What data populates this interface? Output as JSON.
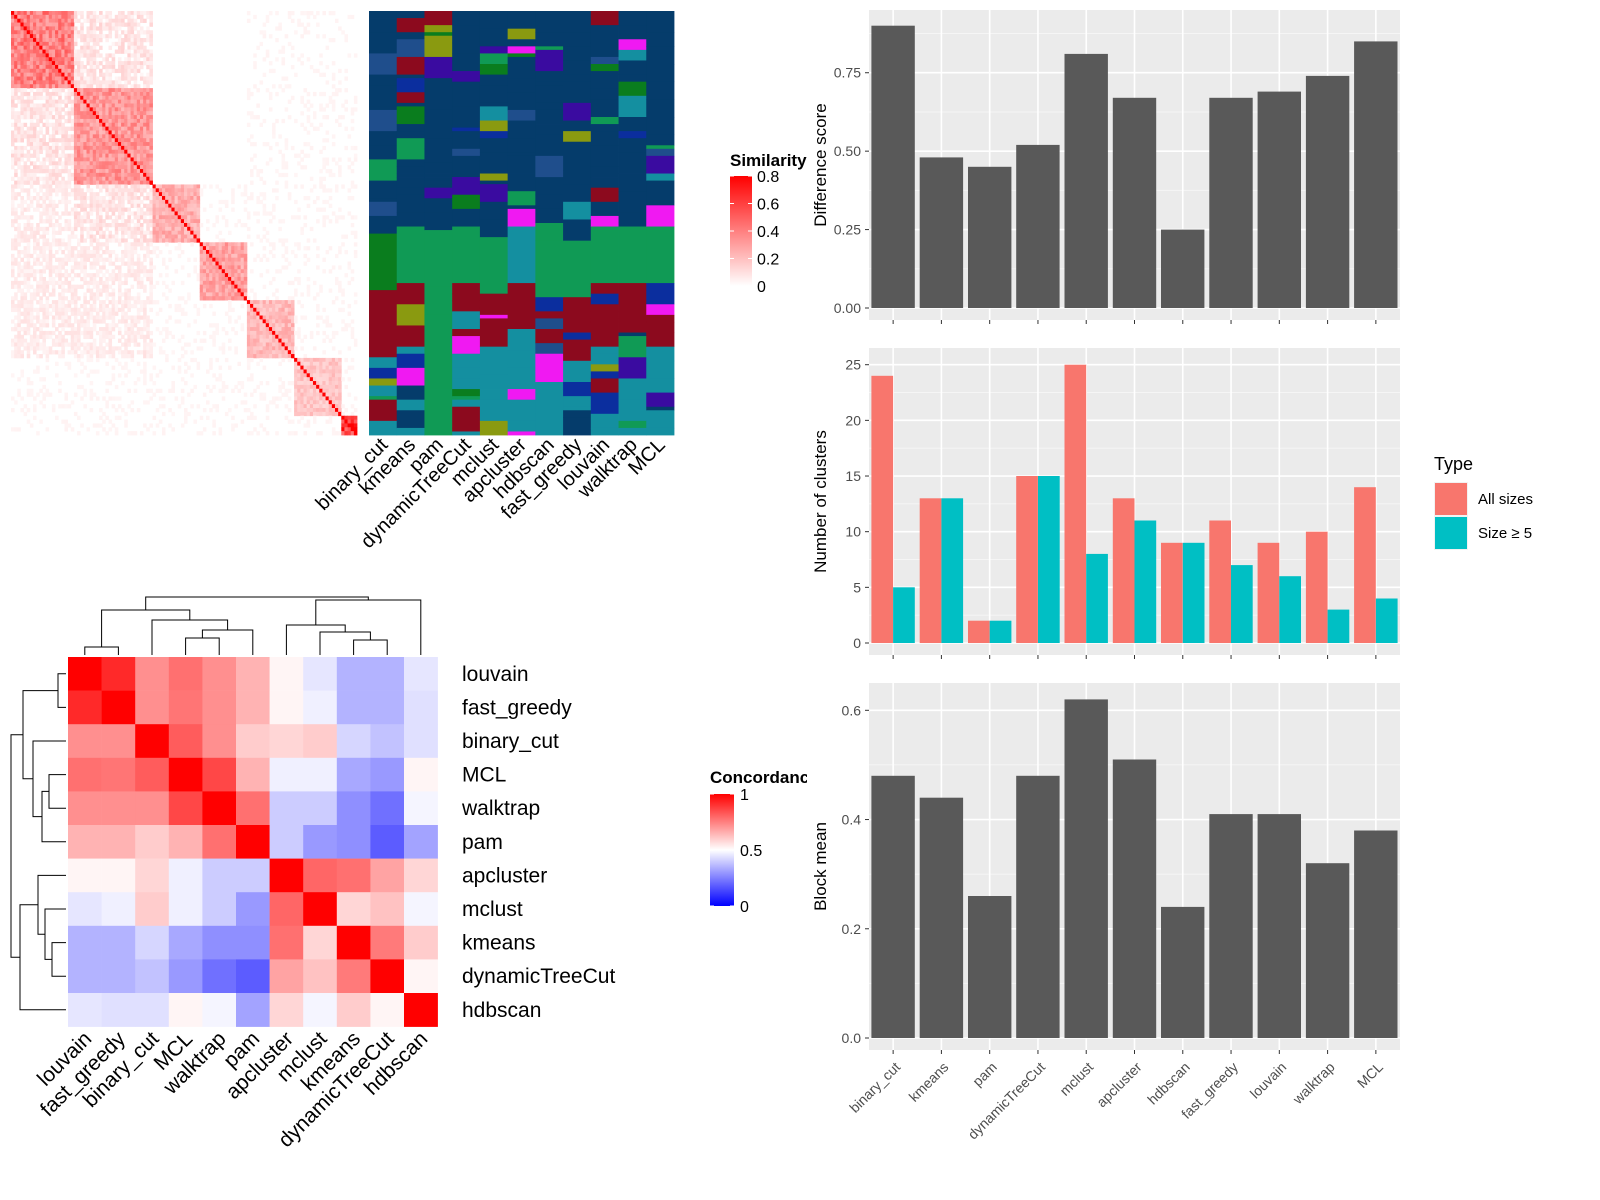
{
  "chart_data": [
    {
      "type": "heatmap",
      "title": "",
      "legend_title": "Similarity",
      "legend_ticks": [
        "0",
        "0.2",
        "0.4",
        "0.6",
        "0.8"
      ],
      "colors": {
        "low": "#ffffff",
        "high": "#ff0000"
      }
    },
    {
      "type": "heatmap",
      "title": "",
      "columns": [
        "binary_cut",
        "kmeans",
        "pam",
        "dynamicTreeCut",
        "mclust",
        "apcluster",
        "hdbscan",
        "fast_greedy",
        "louvain",
        "walktrap",
        "MCL"
      ],
      "palette": [
        "#053c6b",
        "#109a55",
        "#148fa0",
        "#f019f2",
        "#8c0a1e",
        "#8a9a10",
        "#3a0ba0",
        "#0a7d1e",
        "#1f4e8c",
        "#0b2e9e"
      ]
    },
    {
      "type": "heatmap",
      "title": "",
      "legend_title": "Concordance",
      "legend_ticks": [
        "0",
        "0.5",
        "1"
      ],
      "colors": {
        "low": "#0000ff",
        "mid": "#ffffff",
        "high": "#ff0000"
      },
      "rows": [
        "louvain",
        "fast_greedy",
        "binary_cut",
        "MCL",
        "walktrap",
        "pam",
        "apcluster",
        "mclust",
        "kmeans",
        "dynamicTreeCut",
        "hdbscan"
      ],
      "columns": [
        "louvain",
        "fast_greedy",
        "binary_cut",
        "MCL",
        "walktrap",
        "pam",
        "apcluster",
        "mclust",
        "kmeans",
        "dynamicTreeCut",
        "hdbscan"
      ],
      "values": [
        [
          1.0,
          0.92,
          0.72,
          0.78,
          0.72,
          0.65,
          0.52,
          0.45,
          0.35,
          0.35,
          0.45
        ],
        [
          0.92,
          1.0,
          0.72,
          0.77,
          0.72,
          0.65,
          0.52,
          0.47,
          0.35,
          0.35,
          0.44
        ],
        [
          0.72,
          0.72,
          1.0,
          0.82,
          0.72,
          0.6,
          0.58,
          0.6,
          0.42,
          0.38,
          0.44
        ],
        [
          0.78,
          0.77,
          0.82,
          1.0,
          0.86,
          0.65,
          0.47,
          0.47,
          0.33,
          0.3,
          0.52
        ],
        [
          0.72,
          0.72,
          0.72,
          0.86,
          1.0,
          0.78,
          0.4,
          0.4,
          0.28,
          0.22,
          0.48
        ],
        [
          0.65,
          0.65,
          0.6,
          0.65,
          0.78,
          1.0,
          0.4,
          0.3,
          0.28,
          0.18,
          0.32
        ],
        [
          0.52,
          0.52,
          0.58,
          0.47,
          0.4,
          0.4,
          1.0,
          0.8,
          0.78,
          0.68,
          0.58
        ],
        [
          0.45,
          0.47,
          0.6,
          0.47,
          0.4,
          0.3,
          0.8,
          1.0,
          0.58,
          0.62,
          0.48
        ],
        [
          0.35,
          0.35,
          0.42,
          0.33,
          0.28,
          0.28,
          0.78,
          0.58,
          1.0,
          0.76,
          0.6
        ],
        [
          0.35,
          0.35,
          0.38,
          0.3,
          0.22,
          0.18,
          0.68,
          0.62,
          0.76,
          1.0,
          0.52
        ],
        [
          0.45,
          0.44,
          0.44,
          0.52,
          0.48,
          0.32,
          0.58,
          0.48,
          0.6,
          0.52,
          1.0
        ]
      ]
    },
    {
      "type": "bar",
      "title": "",
      "xlabel": "",
      "ylabel": "Difference score",
      "categories": [
        "binary_cut",
        "kmeans",
        "pam",
        "dynamicTreeCut",
        "mclust",
        "apcluster",
        "hdbscan",
        "fast_greedy",
        "louvain",
        "walktrap",
        "MCL"
      ],
      "values": [
        0.9,
        0.48,
        0.45,
        0.52,
        0.81,
        0.67,
        0.25,
        0.67,
        0.69,
        0.74,
        0.85
      ],
      "ylim": [
        0,
        0.95
      ],
      "yticks": [
        "0.00",
        "0.25",
        "0.50",
        "0.75"
      ],
      "grid": true,
      "colors": {
        "bar": "#595959",
        "panel": "#ebebeb"
      }
    },
    {
      "type": "bar",
      "title": "",
      "xlabel": "",
      "ylabel": "Number of clusters",
      "categories": [
        "binary_cut",
        "kmeans",
        "pam",
        "dynamicTreeCut",
        "mclust",
        "apcluster",
        "hdbscan",
        "fast_greedy",
        "louvain",
        "walktrap",
        "MCL"
      ],
      "series": [
        {
          "name": "All sizes",
          "values": [
            24,
            13,
            2,
            15,
            25,
            13,
            9,
            11,
            9,
            10,
            14
          ],
          "color": "#f8766d"
        },
        {
          "name": "Size ≥ 5",
          "values": [
            5,
            13,
            2,
            15,
            8,
            11,
            9,
            7,
            6,
            3,
            4
          ],
          "color": "#00bfc4"
        }
      ],
      "legend_title": "Type",
      "legend_position": "right",
      "ylim": [
        0,
        26.5
      ],
      "yticks": [
        "0",
        "5",
        "10",
        "15",
        "20",
        "25"
      ],
      "grid": true
    },
    {
      "type": "bar",
      "title": "",
      "xlabel": "",
      "ylabel": "Block mean",
      "categories": [
        "binary_cut",
        "kmeans",
        "pam",
        "dynamicTreeCut",
        "mclust",
        "apcluster",
        "hdbscan",
        "fast_greedy",
        "louvain",
        "walktrap",
        "MCL"
      ],
      "values": [
        0.48,
        0.44,
        0.26,
        0.48,
        0.62,
        0.51,
        0.24,
        0.41,
        0.41,
        0.32,
        0.38
      ],
      "ylim": [
        0,
        0.65
      ],
      "yticks": [
        "0.0",
        "0.2",
        "0.4",
        "0.6"
      ],
      "grid": true,
      "colors": {
        "bar": "#595959",
        "panel": "#ebebeb"
      }
    }
  ]
}
